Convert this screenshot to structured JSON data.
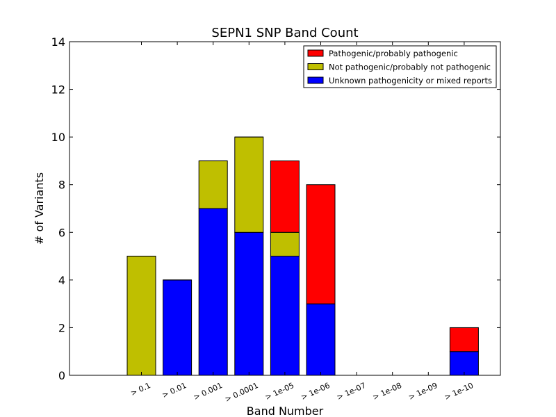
{
  "chart_data": {
    "type": "bar",
    "stacked": true,
    "title": "SEPN1 SNP Band Count",
    "xlabel": "Band Number",
    "ylabel": "# of Variants",
    "ylim": [
      0,
      14
    ],
    "yticks": [
      0,
      2,
      4,
      6,
      8,
      10,
      12,
      14
    ],
    "grid": false,
    "legend_position": "top-right",
    "categories": [
      "> 0.1",
      "> 0.01",
      "> 0.001",
      "> 0.0001",
      "> 1e-05",
      "> 1e-06",
      "> 1e-07",
      "> 1e-08",
      "> 1e-09",
      "> 1e-10"
    ],
    "series": [
      {
        "name": "Unknown pathogenicity or mixed reports",
        "color": "#0000ff",
        "values": [
          0,
          4,
          7,
          6,
          5,
          3,
          0,
          0,
          0,
          1
        ]
      },
      {
        "name": "Not pathogenic/probably not pathogenic",
        "color": "#bfbf00",
        "values": [
          5,
          0,
          2,
          4,
          1,
          0,
          0,
          0,
          0,
          0
        ]
      },
      {
        "name": "Pathogenic/probably pathogenic",
        "color": "#ff0000",
        "values": [
          0,
          0,
          0,
          0,
          3,
          5,
          0,
          0,
          0,
          1
        ]
      }
    ],
    "legend_order": [
      "Pathogenic/probably pathogenic",
      "Not pathogenic/probably not pathogenic",
      "Unknown pathogenicity or mixed reports"
    ]
  }
}
